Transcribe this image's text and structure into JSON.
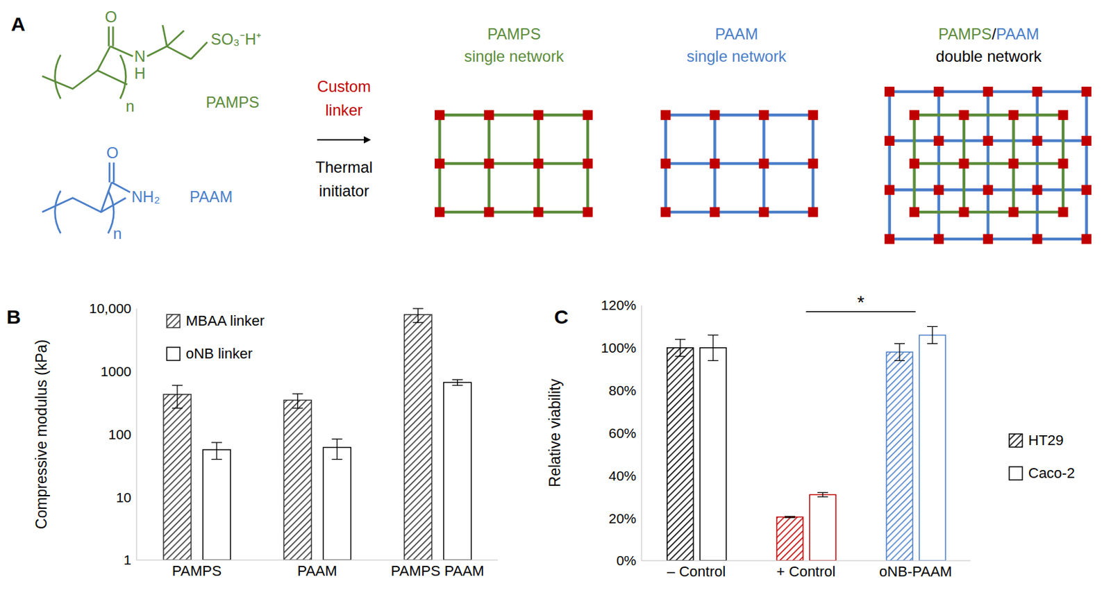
{
  "panel_labels": [
    "A",
    "B",
    "C"
  ],
  "diagram": {
    "structures": [
      {
        "name": "PAMPS",
        "color": "#5b8c3a",
        "atoms": [
          "O",
          "N",
          "H",
          "SO₃⁻H⁺"
        ],
        "repeat": "n"
      },
      {
        "name": "PAAM",
        "color": "#4a7ec9",
        "atoms": [
          "O",
          "NH₂"
        ],
        "repeat": "n"
      }
    ],
    "arrow": {
      "above": [
        "Custom",
        "linker"
      ],
      "above_color": "#c00000",
      "below": [
        "Thermal",
        "initiator"
      ]
    },
    "crosslink_color": "#c00000",
    "networks": [
      {
        "polymers": [
          "PAMPS"
        ],
        "subtitle": "single network"
      },
      {
        "polymers": [
          "PAAM"
        ],
        "subtitle": "single network"
      },
      {
        "polymers": [
          "PAMPS",
          "PAAM"
        ],
        "separator": "/",
        "subtitle": "double network"
      }
    ]
  },
  "chart_data": [
    {
      "type": "bar",
      "ylabel": "Compressive modulus (kPa)",
      "categories": [
        "PAMPS",
        "PAAM",
        "PAMPS PAAM"
      ],
      "series": [
        {
          "name": "MBAA linker",
          "color": "#333333",
          "values": [
            430,
            350,
            8000
          ],
          "errors": [
            170,
            90,
            2000
          ]
        },
        {
          "name": "oNB linker",
          "color": "#000000",
          "values": [
            57,
            62,
            670
          ],
          "errors": [
            17,
            22,
            70
          ]
        }
      ],
      "log": "y",
      "ylim": [
        1,
        10000
      ],
      "yticks": [
        1,
        10,
        100,
        1000,
        {
          "value": 10000,
          "label": "10,000"
        }
      ],
      "legend": "upper left"
    },
    {
      "type": "bar",
      "ylabel": "Relative viability",
      "categories": [
        "– Control",
        "+ Control",
        "oNB-PAAM"
      ],
      "series": [
        {
          "name": "HT29",
          "color": "#000000",
          "colors": [
            "#000000",
            "#c00000",
            "#4a7ec9"
          ],
          "values": [
            100,
            20.5,
            98
          ],
          "errors": [
            4,
            0.3,
            4
          ]
        },
        {
          "name": "Caco-2",
          "color": "#000000",
          "colors": [
            "#000000",
            "#c00000",
            "#4a7ec9"
          ],
          "values": [
            100,
            31,
            106
          ],
          "errors": [
            6,
            1,
            4
          ]
        }
      ],
      "ylim": [
        0,
        120
      ],
      "yticks": [
        {
          "value": 0,
          "label": "0%"
        },
        {
          "value": 20,
          "label": "20%"
        },
        {
          "value": 40,
          "label": "40%"
        },
        {
          "value": 60,
          "label": "60%"
        },
        {
          "value": 80,
          "label": "80%"
        },
        {
          "value": 100,
          "label": "100%"
        },
        {
          "value": 120,
          "label": "120%"
        }
      ],
      "legend": "right",
      "annotations": [
        {
          "text": "*",
          "from": "+ Control",
          "to": "oNB-PAAM",
          "y": 117
        }
      ]
    }
  ]
}
